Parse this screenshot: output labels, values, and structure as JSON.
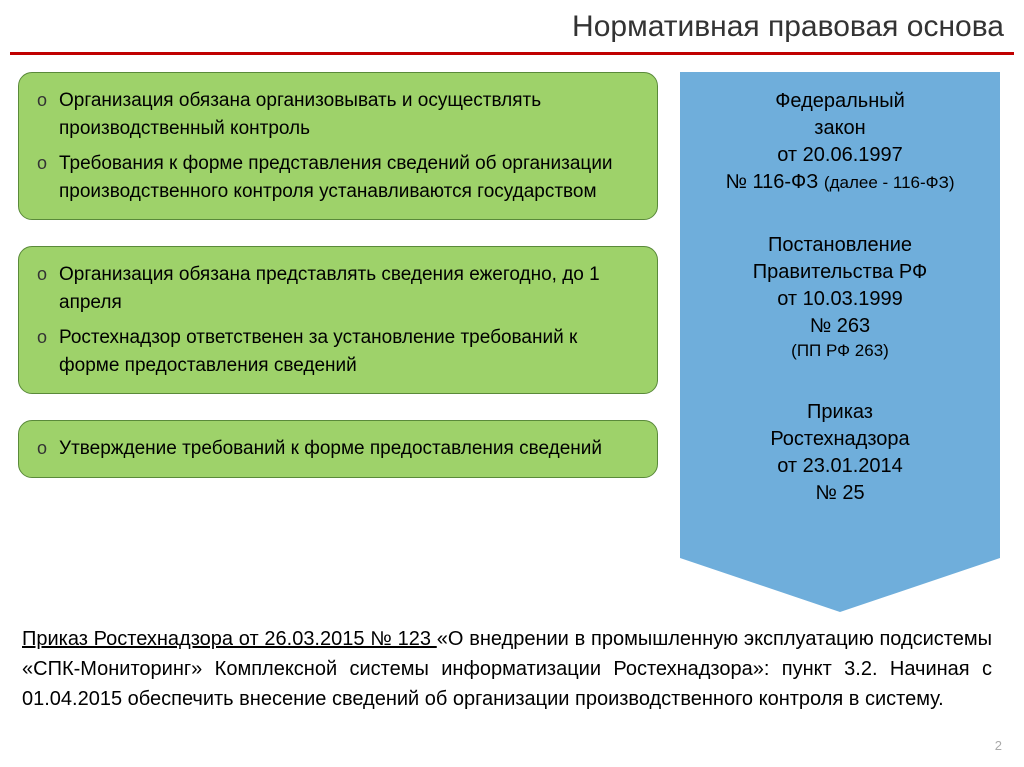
{
  "title": "Нормативная правовая основа",
  "colors": {
    "title_underline": "#c00000",
    "green_box_bg": "#9ed26a",
    "green_box_border": "#5a8a3a",
    "arrow_bg": "#6faedb",
    "page_bg": "#ffffff",
    "text": "#000000"
  },
  "boxes": [
    {
      "items": [
        "Организация обязана организовывать и осуществлять производственный контроль",
        "Требования к форме представления сведений об организации производственного контроля устанавливаются государством"
      ]
    },
    {
      "items": [
        "Организация обязана представлять сведения ежегодно, до 1 апреля",
        "Ростехнадзор ответственен за установление требований к форме предоставления сведений"
      ]
    },
    {
      "items": [
        "Утверждение требований к форме предоставления сведений"
      ]
    }
  ],
  "arrow": [
    {
      "line1": "Федеральный",
      "line2": "закон",
      "line3": "от 20.06.1997",
      "line4": "№ 116-ФЗ",
      "note": "(далее - 116-ФЗ)"
    },
    {
      "line1": "Постановление",
      "line2": "Правительства РФ",
      "line3": "от 10.03.1999",
      "line4": "№ 263",
      "note": "(ПП РФ 263)"
    },
    {
      "line1": "Приказ",
      "line2": "Ростехнадзора",
      "line3": "от 23.01.2014",
      "line4": "№ 25",
      "note": ""
    }
  ],
  "bottom": {
    "underlined": "Приказ Ростехнадзора от 26.03.2015 № 123 ",
    "rest": "«О внедрении в промышленную эксплуатацию подсистемы «СПК-Мониторинг» Комплексной системы информатизации Ростехнадзора»: пункт 3.2. Начиная с 01.04.2015 обеспечить внесение сведений об организации производственного контроля в систему."
  },
  "page_number": "2"
}
